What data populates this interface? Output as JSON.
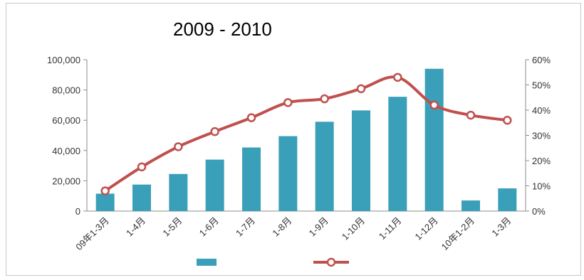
{
  "chart_data": {
    "type": "bar",
    "title": "2009  -  2010",
    "categories": [
      "09年1-3月",
      "1-4月",
      "1-5月",
      "1-6月",
      "1-7月",
      "1-8月",
      "1-9月",
      "1-10月",
      "1-11月",
      "1-12月",
      "10年1-2月",
      "1-3月"
    ],
    "series": [
      {
        "type": "bar",
        "axis": "left",
        "color": "#3a9fb8",
        "values": [
          11500,
          17500,
          24500,
          34000,
          42000,
          49500,
          59000,
          66500,
          75500,
          94000,
          7000,
          15000
        ]
      },
      {
        "type": "line",
        "axis": "right",
        "color": "#c0504d",
        "values": [
          0.08,
          0.175,
          0.255,
          0.315,
          0.37,
          0.43,
          0.445,
          0.485,
          0.53,
          0.42,
          0.38,
          0.36
        ]
      }
    ],
    "y_left": {
      "min": 0,
      "max": 100000,
      "ticks": [
        "0",
        "20,000",
        "40,000",
        "60,000",
        "80,000",
        "100,000"
      ]
    },
    "y_right": {
      "min": 0,
      "max": 0.6,
      "ticks": [
        "0%",
        "10%",
        "20%",
        "30%",
        "40%",
        "50%",
        "60%"
      ]
    },
    "grid": false,
    "legend_position": "bottom"
  }
}
